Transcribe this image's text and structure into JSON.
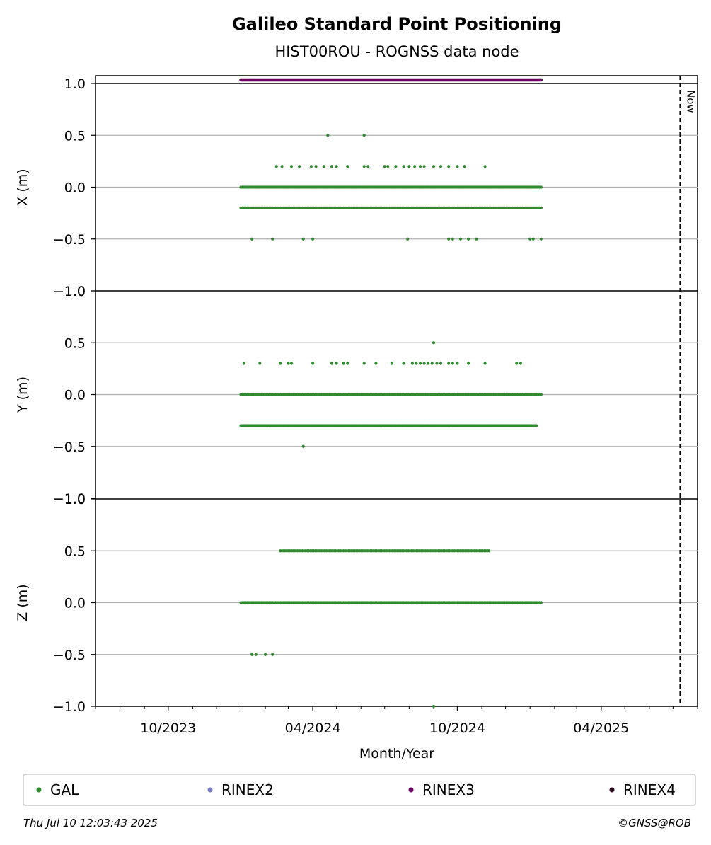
{
  "title": "Galileo Standard Point Positioning",
  "subtitle": "HIST00ROU - ROGNSS data node",
  "xlabel": "Month/Year",
  "x_ticks": [
    "10/2023",
    "04/2024",
    "10/2024",
    "04/2025"
  ],
  "now_label": "Now",
  "legend": [
    {
      "label": "GAL",
      "color": "#2e8b2e"
    },
    {
      "label": "RINEX2",
      "color": "#7b7bc0"
    },
    {
      "label": "RINEX3",
      "color": "#6b0060"
    },
    {
      "label": "RINEX4",
      "color": "#2a0a1e"
    }
  ],
  "footer_left": "Thu Jul 10 12:03:43 2025",
  "footer_right": "©GNSS@ROB",
  "chart_data": {
    "type": "scatter",
    "x_axis": {
      "unit": "date",
      "range": [
        "2023-07-01",
        "2025-08-01"
      ],
      "major_ticks": [
        "2023-10-01",
        "2024-04-01",
        "2024-10-01",
        "2025-04-01"
      ],
      "minor_tick_interval": "1 month"
    },
    "now": "2025-07-10",
    "rinex3_coverage": [
      "2024-01-01",
      "2025-01-15"
    ],
    "panels": [
      {
        "ylabel": "X (m)",
        "ylim": [
          -1.0,
          1.0
        ],
        "yticks": [
          "−1.0",
          "−0.5",
          "0.0",
          "0.5",
          "1.0"
        ],
        "grid": true,
        "series": [
          {
            "name": "GAL",
            "color": "#2e8b2e",
            "levels": [
              {
                "y": 0.0,
                "dates": [
                  "2024-01-01",
                  "2025-01-15"
                ]
              },
              {
                "y": -0.2,
                "dates": [
                  "2024-01-01",
                  "2025-01-15"
                ]
              },
              {
                "y": 0.5,
                "dates": [
                  "2024-04-20",
                  "2024-06-05"
                ]
              },
              {
                "y": 0.2,
                "dates": [
                  "2024-02-15",
                  "2024-02-22",
                  "2024-03-05",
                  "2024-03-15",
                  "2024-03-30",
                  "2024-04-05",
                  "2024-04-15",
                  "2024-04-25",
                  "2024-05-01",
                  "2024-05-15",
                  "2024-06-05",
                  "2024-06-10",
                  "2024-07-01",
                  "2024-07-05",
                  "2024-07-15",
                  "2024-07-25",
                  "2024-08-01",
                  "2024-08-08",
                  "2024-08-15",
                  "2024-08-20",
                  "2024-09-01",
                  "2024-09-10",
                  "2024-09-20",
                  "2024-10-01",
                  "2024-10-10",
                  "2024-11-05"
                ]
              },
              {
                "y": -0.5,
                "dates": [
                  "2024-01-15",
                  "2024-02-10",
                  "2024-03-20",
                  "2024-04-01",
                  "2024-07-30",
                  "2024-09-20",
                  "2024-09-25",
                  "2024-10-05",
                  "2024-10-15",
                  "2024-10-25",
                  "2025-01-01",
                  "2025-01-05",
                  "2025-01-15"
                ]
              }
            ]
          }
        ]
      },
      {
        "ylabel": "Y (m)",
        "ylim": [
          -1.0,
          1.0
        ],
        "yticks": [
          "−1.0",
          "−0.5",
          "0.0",
          "0.5",
          "1.0"
        ],
        "grid": true,
        "series": [
          {
            "name": "GAL",
            "color": "#2e8b2e",
            "levels": [
              {
                "y": 0.0,
                "dates": [
                  "2024-01-01",
                  "2025-01-15"
                ]
              },
              {
                "y": -0.3,
                "dates": [
                  "2024-01-01",
                  "2025-01-10"
                ]
              },
              {
                "y": 0.5,
                "dates": [
                  "2024-09-01"
                ]
              },
              {
                "y": -0.5,
                "dates": [
                  "2024-03-20"
                ]
              },
              {
                "y": 0.3,
                "dates": [
                  "2024-01-05",
                  "2024-01-25",
                  "2024-02-20",
                  "2024-03-01",
                  "2024-03-05",
                  "2024-04-01",
                  "2024-04-25",
                  "2024-05-01",
                  "2024-05-10",
                  "2024-05-15",
                  "2024-06-05",
                  "2024-06-20",
                  "2024-07-10",
                  "2024-07-25",
                  "2024-08-05",
                  "2024-08-10",
                  "2024-08-15",
                  "2024-08-20",
                  "2024-08-25",
                  "2024-08-30",
                  "2024-09-05",
                  "2024-09-10",
                  "2024-09-20",
                  "2024-09-25",
                  "2024-10-01",
                  "2024-10-15",
                  "2024-11-05",
                  "2024-12-15",
                  "2024-12-20"
                ]
              }
            ]
          }
        ]
      },
      {
        "ylabel": "Z (m)",
        "ylim": [
          -1.0,
          1.0
        ],
        "yticks": [
          "−1.0",
          "−0.5",
          "0.0",
          "0.5",
          "1.0"
        ],
        "grid": true,
        "series": [
          {
            "name": "GAL",
            "color": "#2e8b2e",
            "levels": [
              {
                "y": 0.0,
                "dates": [
                  "2024-01-01",
                  "2025-01-15"
                ]
              },
              {
                "y": 0.5,
                "dates": [
                  "2024-02-20",
                  "2024-11-10"
                ]
              },
              {
                "y": -0.5,
                "dates": [
                  "2024-01-15",
                  "2024-01-20",
                  "2024-02-01",
                  "2024-02-10"
                ]
              },
              {
                "y": -1.0,
                "dates": [
                  "2024-09-01"
                ]
              }
            ]
          }
        ]
      }
    ]
  }
}
